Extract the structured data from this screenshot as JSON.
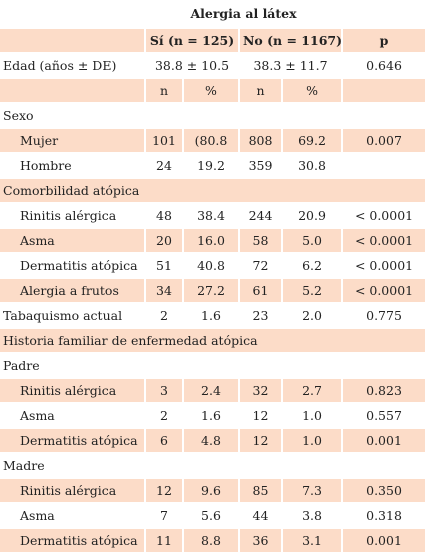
{
  "table": {
    "title": "Alergia al látex",
    "headers": {
      "si": "Sí (n = 125)",
      "no": "No (n = 1167)",
      "p": "p"
    },
    "edad": {
      "label": "Edad (años ± DE)",
      "si": "38.8 ± 10.5",
      "no": "38.3 ± 11.7",
      "p": "0.646"
    },
    "units": {
      "n1": "n",
      "pct1": "%",
      "n2": "n",
      "pct2": "%"
    },
    "sexo": {
      "label": "Sexo",
      "rows": [
        {
          "label": "Mujer",
          "n1": "101",
          "pct1": "(80.8",
          "n2": "808",
          "pct2": "69.2",
          "p": "0.007"
        },
        {
          "label": "Hombre",
          "n1": "24",
          "pct1": "19.2",
          "n2": "359",
          "pct2": "30.8",
          "p": ""
        }
      ]
    },
    "comorbilidad": {
      "label": "Comorbilidad atópica",
      "rows": [
        {
          "label": "Rinitis alérgica",
          "n1": "48",
          "pct1": "38.4",
          "n2": "244",
          "pct2": "20.9",
          "p": "< 0.0001"
        },
        {
          "label": "Asma",
          "n1": "20",
          "pct1": "16.0",
          "n2": "58",
          "pct2": "5.0",
          "p": "< 0.0001"
        },
        {
          "label": "Dermatitis atópica",
          "n1": "51",
          "pct1": "40.8",
          "n2": "72",
          "pct2": "6.2",
          "p": "< 0.0001"
        },
        {
          "label": "Alergia a frutos",
          "n1": "34",
          "pct1": "27.2",
          "n2": "61",
          "pct2": "5.2",
          "p": "< 0.0001"
        }
      ]
    },
    "tabaquismo": {
      "label": "Tabaquismo actual",
      "n1": "2",
      "pct1": "1.6",
      "n2": "23",
      "pct2": "2.0",
      "p": "0.775"
    },
    "historia": {
      "label": "Historia familiar de enfermedad atópica"
    },
    "padre": {
      "label": "Padre",
      "rows": [
        {
          "label": "Rinitis alérgica",
          "n1": "3",
          "pct1": "2.4",
          "n2": "32",
          "pct2": "2.7",
          "p": "0.823"
        },
        {
          "label": "Asma",
          "n1": "2",
          "pct1": "1.6",
          "n2": "12",
          "pct2": "1.0",
          "p": "0.557"
        },
        {
          "label": "Dermatitis atópica",
          "n1": "6",
          "pct1": "4.8",
          "n2": "12",
          "pct2": "1.0",
          "p": "0.001"
        }
      ]
    },
    "madre": {
      "label": "Madre",
      "rows": [
        {
          "label": "Rinitis alérgica",
          "n1": "12",
          "pct1": "9.6",
          "n2": "85",
          "pct2": "7.3",
          "p": "0.350"
        },
        {
          "label": "Asma",
          "n1": "7",
          "pct1": "5.6",
          "n2": "44",
          "pct2": "3.8",
          "p": "0.318"
        },
        {
          "label": "Dermatitis atópica",
          "n1": "11",
          "pct1": "8.8",
          "n2": "36",
          "pct2": "3.1",
          "p": "0.001"
        }
      ]
    },
    "colors": {
      "band": "#fcdcc8",
      "background": "#ffffff",
      "text": "#222222"
    }
  }
}
